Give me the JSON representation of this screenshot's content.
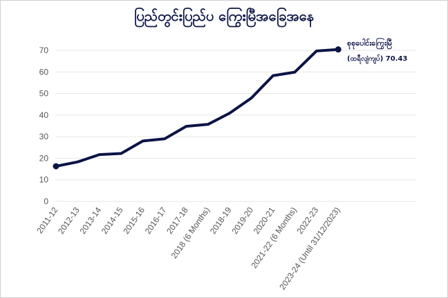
{
  "chart_data": {
    "type": "line",
    "title": "ပြည်တွင်းပြည်ပ ကြွေးမြီအခြေအနေ",
    "categories": [
      "2011-12",
      "2012-13",
      "2013-14",
      "2014-15",
      "2015-16",
      "2016-17",
      "2017-18",
      "2018 (6 Months)",
      "2018-19",
      "2019-20",
      "2020-21",
      "2021-22 (6 Months)",
      "2022-23",
      "2023-24 (Until 31/12/2023)"
    ],
    "series": [
      {
        "values": [
          16.3,
          18.3,
          21.7,
          22.2,
          28.0,
          29.0,
          34.8,
          35.7,
          40.9,
          47.9,
          58.3,
          59.9,
          69.7,
          70.43
        ],
        "color": "#0b1446"
      }
    ],
    "ylim": [
      0,
      75
    ],
    "yticks": [
      0,
      10,
      20,
      30,
      40,
      50,
      60,
      70
    ],
    "grid": true,
    "annotation": {
      "line1": "စုစုပေါင်းကြွေးမြီ",
      "line2": "(ထရီလျံကျပ်) 70.43"
    }
  }
}
